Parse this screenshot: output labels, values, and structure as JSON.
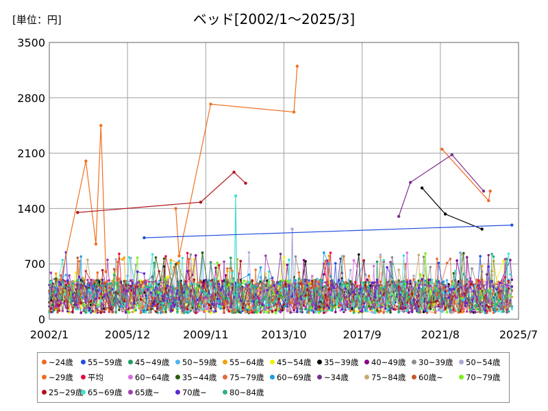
{
  "unit_label": "[単位：円]",
  "chart_data": {
    "type": "line",
    "title": "ベッド[2002/1～2025/3]",
    "xlabel": "",
    "ylabel": "",
    "ylim": [
      0,
      3500
    ],
    "y_ticks": [
      0,
      700,
      1400,
      2100,
      2800,
      3500
    ],
    "x_range": [
      "2002-01",
      "2025-07"
    ],
    "x_ticks": [
      {
        "label": "2002/1",
        "date": "2002-01"
      },
      {
        "label": "2005/12",
        "date": "2005-12"
      },
      {
        "label": "2009/11",
        "date": "2009-11"
      },
      {
        "label": "2013/10",
        "date": "2013-10"
      },
      {
        "label": "2017/9",
        "date": "2017-09"
      },
      {
        "label": "2021/8",
        "date": "2021-08"
      },
      {
        "label": "2025/7",
        "date": "2025-07"
      }
    ],
    "grid": true,
    "legend_position": "bottom",
    "series": [
      {
        "name": "~24歳",
        "color": "#f26522"
      },
      {
        "name": "55~59歳",
        "color": "#1f4ee0"
      },
      {
        "name": "45~49歳",
        "color": "#1f9e63"
      },
      {
        "name": "50~59歳",
        "color": "#4fb3f0"
      },
      {
        "name": "55~64歳",
        "color": "#f0a30a"
      },
      {
        "name": "45~54歳",
        "color": "#f2f20a"
      },
      {
        "name": "35~39歳",
        "color": "#000000"
      },
      {
        "name": "40~49歳",
        "color": "#8b008b"
      },
      {
        "name": "30~39歳",
        "color": "#8c8c8c"
      },
      {
        "name": "50~54歳",
        "color": "#a9a9d9"
      },
      {
        "name": "~29歳",
        "color": "#f07020"
      },
      {
        "name": "平均",
        "color": "#e0103a"
      },
      {
        "name": "60~64歳",
        "color": "#d86be0"
      },
      {
        "name": "35~44歳",
        "color": "#2e5e10"
      },
      {
        "name": "75~79歳",
        "color": "#e06a3a"
      },
      {
        "name": "60~69歳",
        "color": "#1a9fe0"
      },
      {
        "name": "~34歳",
        "color": "#7a2e8c"
      },
      {
        "name": "75~84歳",
        "color": "#c8a878"
      },
      {
        "name": "60歳~",
        "color": "#c8582a"
      },
      {
        "name": "70~79歳",
        "color": "#7af01a"
      },
      {
        "name": "25~29歳",
        "color": "#b0101a"
      },
      {
        "name": "65~69歳",
        "color": "#40e0d0"
      },
      {
        "name": "65歳~",
        "color": "#a040b0"
      },
      {
        "name": "70歳~",
        "color": "#5a2ad0"
      },
      {
        "name": "80~84歳",
        "color": "#30b080"
      }
    ],
    "peaks": [
      {
        "series": "~29歳",
        "points": [
          [
            "2002-08",
            500
          ],
          [
            "2003-11",
            2000
          ],
          [
            "2004-05",
            950
          ],
          [
            "2004-08",
            2450
          ],
          [
            "2004-11",
            600
          ]
        ]
      },
      {
        "series": "~29歳",
        "points": [
          [
            "2008-05",
            1400
          ],
          [
            "2008-07",
            800
          ],
          [
            "2010-02",
            2720
          ],
          [
            "2014-04",
            2620
          ],
          [
            "2014-06",
            3200
          ]
        ]
      },
      {
        "series": "~24歳",
        "points": [
          [
            "2021-09",
            2150
          ],
          [
            "2024-01",
            1500
          ],
          [
            "2024-02",
            1620
          ]
        ]
      },
      {
        "series": "25~29歳",
        "points": [
          [
            "2003-06",
            1350
          ],
          [
            "2009-08",
            1480
          ],
          [
            "2011-04",
            1860
          ],
          [
            "2011-11",
            1720
          ]
        ]
      },
      {
        "series": "~34歳",
        "points": [
          [
            "2019-07",
            1300
          ],
          [
            "2020-02",
            1730
          ],
          [
            "2022-03",
            2080
          ],
          [
            "2023-10",
            1620
          ]
        ]
      },
      {
        "series": "35~39歳",
        "points": [
          [
            "2020-09",
            1660
          ],
          [
            "2021-11",
            1330
          ],
          [
            "2023-09",
            1140
          ]
        ]
      },
      {
        "series": "65~69歳",
        "points": [
          [
            "2011-05",
            1560
          ]
        ]
      },
      {
        "series": "50~54歳",
        "points": [
          [
            "2014-03",
            1140
          ]
        ]
      },
      {
        "series": "55~59歳",
        "points": [
          [
            "2006-10",
            1030
          ],
          [
            "2025-03",
            1190
          ]
        ]
      }
    ]
  }
}
